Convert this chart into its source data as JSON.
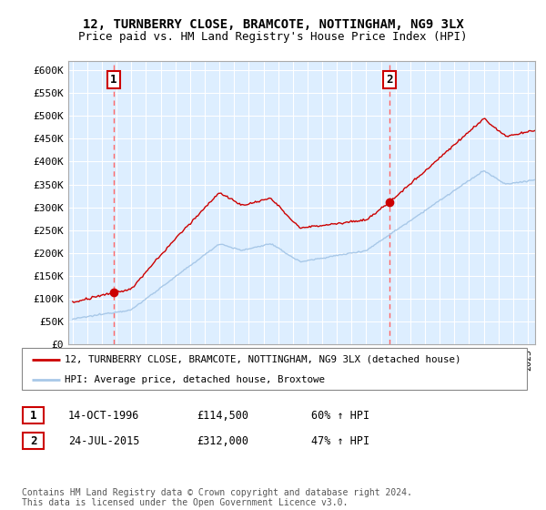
{
  "title": "12, TURNBERRY CLOSE, BRAMCOTE, NOTTINGHAM, NG9 3LX",
  "subtitle": "Price paid vs. HM Land Registry's House Price Index (HPI)",
  "ylim": [
    0,
    620000
  ],
  "yticks": [
    0,
    50000,
    100000,
    150000,
    200000,
    250000,
    300000,
    350000,
    400000,
    450000,
    500000,
    550000,
    600000
  ],
  "ytick_labels": [
    "£0",
    "£50K",
    "£100K",
    "£150K",
    "£200K",
    "£250K",
    "£300K",
    "£350K",
    "£400K",
    "£450K",
    "£500K",
    "£550K",
    "£600K"
  ],
  "sale1_date": 1996.79,
  "sale1_price": 114500,
  "sale1_label": "1",
  "sale2_date": 2015.56,
  "sale2_price": 312000,
  "sale2_label": "2",
  "hpi_color": "#a8c8e8",
  "price_color": "#cc0000",
  "marker_color": "#cc0000",
  "vline_color": "#ff6666",
  "annotation_box_color": "#cc0000",
  "bg_color": "#ddeeff",
  "legend_label_price": "12, TURNBERRY CLOSE, BRAMCOTE, NOTTINGHAM, NG9 3LX (detached house)",
  "legend_label_hpi": "HPI: Average price, detached house, Broxtowe",
  "table_row1": [
    "1",
    "14-OCT-1996",
    "£114,500",
    "60% ↑ HPI"
  ],
  "table_row2": [
    "2",
    "24-JUL-2015",
    "£312,000",
    "47% ↑ HPI"
  ],
  "footer": "Contains HM Land Registry data © Crown copyright and database right 2024.\nThis data is licensed under the Open Government Licence v3.0.",
  "title_fontsize": 10,
  "subtitle_fontsize": 9,
  "xstart": 1994,
  "xend": 2025
}
